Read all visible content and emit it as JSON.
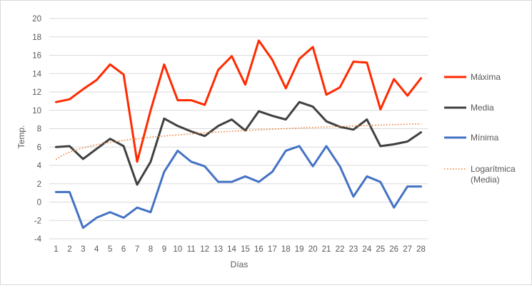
{
  "chart_data": {
    "type": "line",
    "xlabel": "Días",
    "ylabel": "Temp.",
    "ylim": [
      -4,
      20
    ],
    "y_ticks": [
      "-4",
      "-2",
      "0",
      "2",
      "4",
      "6",
      "8",
      "10",
      "12",
      "14",
      "16",
      "18",
      "20"
    ],
    "categories": [
      "1",
      "2",
      "3",
      "4",
      "5",
      "6",
      "7",
      "8",
      "9",
      "10",
      "11",
      "12",
      "13",
      "14",
      "15",
      "16",
      "17",
      "18",
      "19",
      "20",
      "21",
      "22",
      "23",
      "24",
      "25",
      "26",
      "27",
      "28"
    ],
    "grid": "horizontal",
    "legend_position": "right",
    "series": [
      {
        "name": "Máxima",
        "color": "#ff2a00",
        "style": "solid",
        "values": [
          10.9,
          11.2,
          12.3,
          13.3,
          15.0,
          13.9,
          4.4,
          10.0,
          15.0,
          11.1,
          11.1,
          10.6,
          14.4,
          15.9,
          12.8,
          17.6,
          15.5,
          12.4,
          15.6,
          16.9,
          11.7,
          12.5,
          15.3,
          15.2,
          10.1,
          13.4,
          11.6,
          13.5
        ]
      },
      {
        "name": "Media",
        "color": "#404040",
        "style": "solid",
        "values": [
          6.0,
          6.1,
          4.7,
          5.8,
          6.9,
          6.1,
          1.9,
          4.4,
          9.1,
          8.3,
          7.7,
          7.2,
          8.3,
          9.0,
          7.8,
          9.9,
          9.4,
          9.0,
          10.9,
          10.4,
          8.8,
          8.2,
          7.9,
          9.0,
          6.1,
          6.3,
          6.6,
          7.6
        ]
      },
      {
        "name": "Mínima",
        "color": "#4472c4",
        "style": "solid",
        "values": [
          1.1,
          1.1,
          -2.8,
          -1.7,
          -1.1,
          -1.7,
          -0.6,
          -1.1,
          3.3,
          5.6,
          4.4,
          3.9,
          2.2,
          2.2,
          2.8,
          2.2,
          3.3,
          5.6,
          6.1,
          3.9,
          6.1,
          3.9,
          0.6,
          2.8,
          2.2,
          -0.6,
          1.7,
          1.7
        ]
      },
      {
        "name": "Logarítmica (Media)",
        "name_lines": [
          "Logarítmica",
          "(Media)"
        ],
        "color": "#ed7d31",
        "style": "dotted",
        "trendline": {
          "type": "logarithmic",
          "a": 4.63,
          "b": 1.17
        }
      }
    ]
  }
}
